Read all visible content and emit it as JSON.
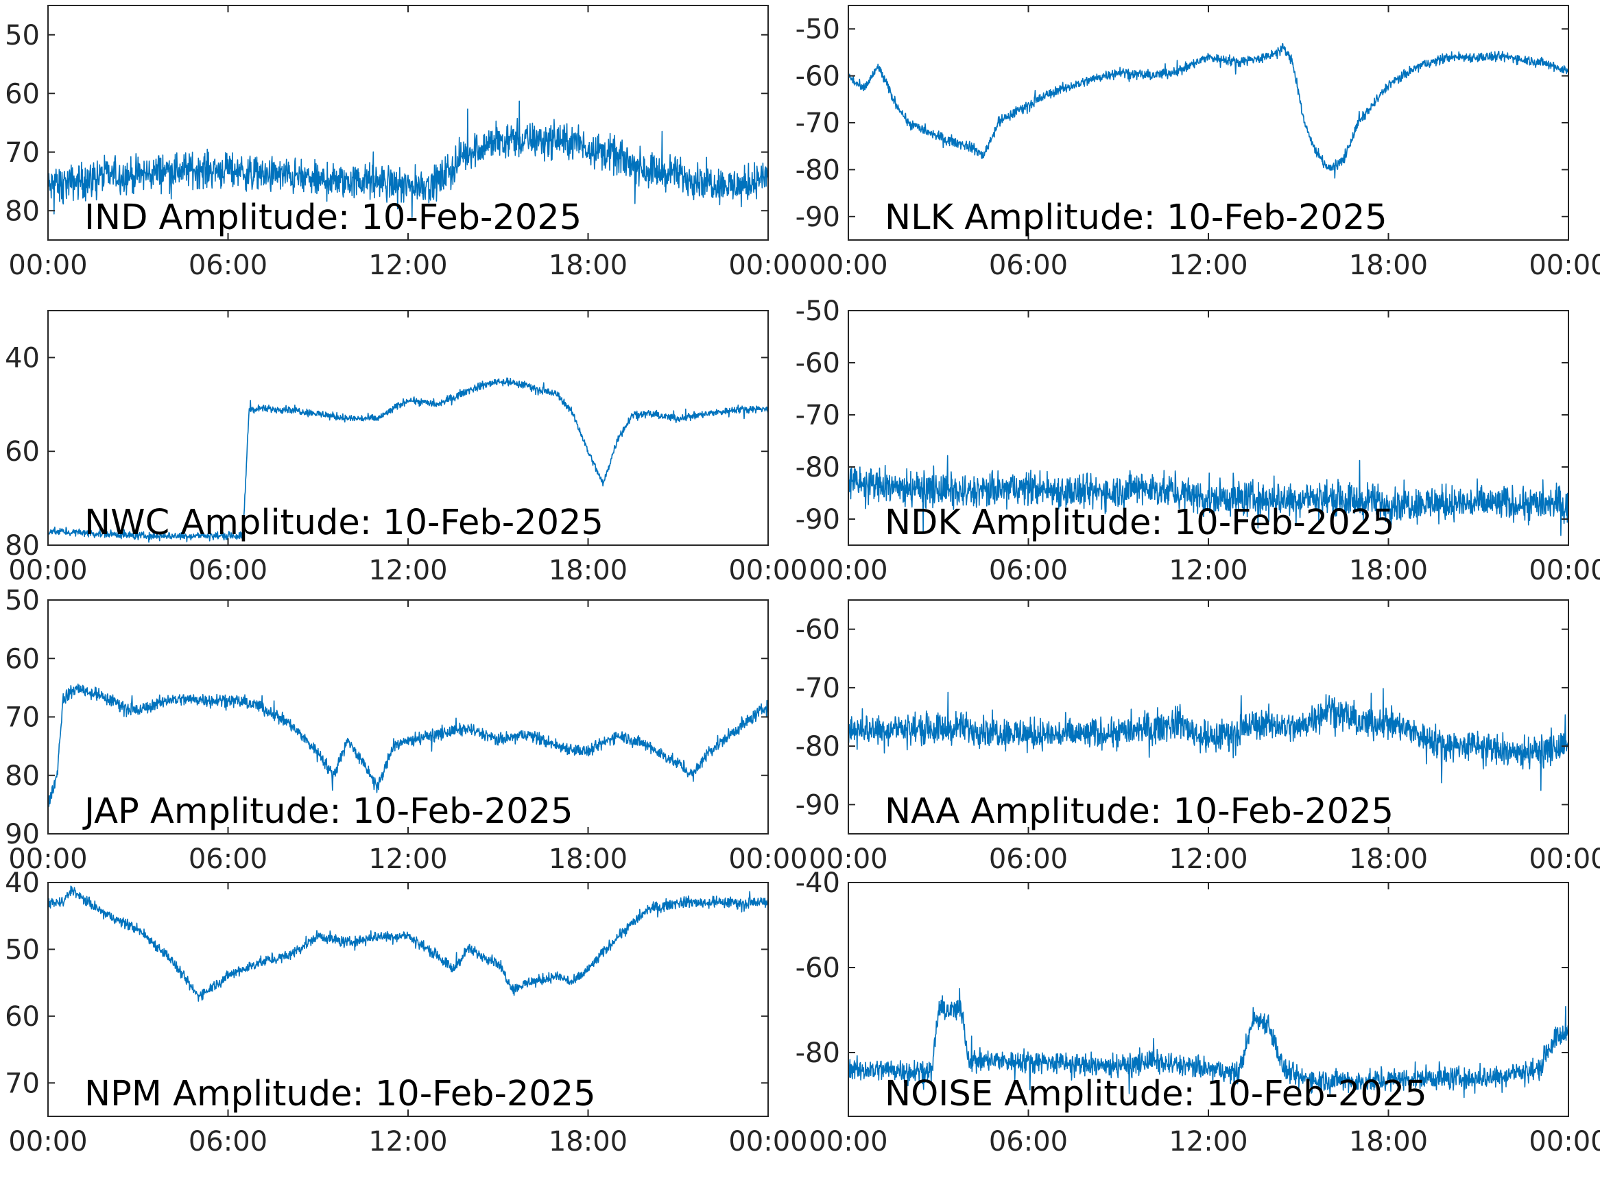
{
  "figure": {
    "line_color": "#0072BD",
    "axis_color": "#262626"
  },
  "chart_data": [
    {
      "type": "line",
      "title": "IND Amplitude: 10-Feb-2025",
      "station": "IND",
      "ylim": [
        -85,
        -45
      ],
      "yticks": [
        -50,
        -60,
        -70,
        -80
      ],
      "ytick_labels": [
        "50",
        "60",
        "70",
        "80"
      ],
      "xticks": [
        "00:00",
        "06:00",
        "12:00",
        "18:00",
        "00:00"
      ],
      "x": [
        0,
        1,
        2,
        3,
        4,
        5,
        6,
        7,
        8,
        9,
        10,
        11,
        12,
        13,
        14,
        15,
        16,
        17,
        18,
        19,
        20,
        21,
        22,
        23,
        24
      ],
      "y": [
        -76,
        -75,
        -74,
        -74,
        -73,
        -73,
        -73,
        -74,
        -74,
        -75,
        -75,
        -75,
        -76,
        -75,
        -70,
        -68,
        -68,
        -68,
        -69,
        -71,
        -73,
        -74,
        -75,
        -76,
        -74
      ],
      "noise": 4.5
    },
    {
      "type": "line",
      "title": "NLK Amplitude: 10-Feb-2025",
      "station": "NLK",
      "ylim": [
        -95,
        -45
      ],
      "yticks": [
        -50,
        -60,
        -70,
        -80,
        -90
      ],
      "ytick_labels": [
        "-50",
        "-60",
        "-70",
        "-80",
        "-90"
      ],
      "xticks": [
        "00:00",
        "06:00",
        "12:00",
        "18:00",
        "00:00"
      ],
      "x": [
        0,
        0.5,
        1,
        1.5,
        2,
        3,
        4,
        4.5,
        5,
        6,
        7,
        8,
        9,
        10,
        11,
        12,
        13,
        14,
        14.5,
        14.8,
        15.2,
        15.5,
        16,
        16.5,
        17,
        18,
        19,
        20,
        21,
        22,
        23,
        24
      ],
      "y": [
        -60,
        -63,
        -58,
        -65,
        -70,
        -73,
        -75,
        -77,
        -70,
        -66,
        -63,
        -61,
        -59,
        -60,
        -59,
        -56,
        -57,
        -56,
        -54,
        -57,
        -70,
        -75,
        -80,
        -78,
        -70,
        -62,
        -58,
        -56,
        -56,
        -56,
        -57,
        -59
      ],
      "noise": 1.6
    },
    {
      "type": "line",
      "title": "NWC Amplitude: 10-Feb-2025",
      "station": "NWC",
      "ylim": [
        -80,
        -30
      ],
      "yticks": [
        -40,
        -60,
        -80
      ],
      "ytick_labels": [
        "40",
        "60",
        "80"
      ],
      "xticks": [
        "00:00",
        "06:00",
        "12:00",
        "18:00",
        "00:00"
      ],
      "x": [
        0,
        3,
        6.5,
        6.7,
        7,
        8,
        9,
        10,
        11,
        12,
        13,
        14,
        15,
        16,
        17,
        17.5,
        18,
        18.5,
        19,
        19.5,
        20,
        21,
        22,
        23,
        24
      ],
      "y": [
        -77,
        -78,
        -78,
        -51,
        -51,
        -51,
        -52,
        -53,
        -53,
        -49,
        -50,
        -47,
        -45,
        -46,
        -48,
        -52,
        -60,
        -67,
        -57,
        -52,
        -52,
        -53,
        -52,
        -51,
        -51
      ],
      "noise": 1.2
    },
    {
      "type": "line",
      "title": "NDK Amplitude: 10-Feb-2025",
      "station": "NDK",
      "ylim": [
        -95,
        -50
      ],
      "yticks": [
        -50,
        -60,
        -70,
        -80,
        -90
      ],
      "ytick_labels": [
        "-50",
        "-60",
        "-70",
        "-80",
        "-90"
      ],
      "xticks": [
        "00:00",
        "06:00",
        "12:00",
        "18:00",
        "00:00"
      ],
      "x": [
        0,
        2,
        4,
        6,
        8,
        10,
        12,
        14,
        16,
        18,
        20,
        22,
        24
      ],
      "y": [
        -83,
        -84,
        -85,
        -84,
        -85,
        -84,
        -86,
        -86,
        -86,
        -87,
        -87,
        -87,
        -87
      ],
      "noise": 5
    },
    {
      "type": "line",
      "title": "JAP Amplitude: 10-Feb-2025",
      "station": "JAP",
      "ylim": [
        -90,
        -50
      ],
      "yticks": [
        -50,
        -60,
        -70,
        -80,
        -90
      ],
      "ytick_labels": [
        "50",
        "60",
        "70",
        "80",
        "90"
      ],
      "xticks": [
        "00:00",
        "06:00",
        "12:00",
        "18:00",
        "00:00"
      ],
      "x": [
        0,
        0.3,
        0.5,
        1,
        2,
        3,
        4,
        5,
        6,
        7,
        8,
        9,
        9.5,
        10,
        11,
        11.5,
        12,
        13,
        14,
        15,
        16,
        17,
        18,
        19,
        20,
        21,
        21.5,
        22,
        23,
        24
      ],
      "y": [
        -85,
        -80,
        -67,
        -65,
        -67,
        -69,
        -67,
        -67,
        -67,
        -68,
        -71,
        -76,
        -80,
        -74,
        -82,
        -75,
        -74,
        -73,
        -72,
        -74,
        -73,
        -75,
        -76,
        -73,
        -75,
        -78,
        -80,
        -76,
        -72,
        -68
      ],
      "noise": 1.6
    },
    {
      "type": "line",
      "title": "NAA Amplitude: 10-Feb-2025",
      "station": "NAA",
      "ylim": [
        -95,
        -55
      ],
      "yticks": [
        -60,
        -70,
        -80,
        -90
      ],
      "ytick_labels": [
        "-60",
        "-70",
        "-80",
        "-90"
      ],
      "xticks": [
        "00:00",
        "06:00",
        "12:00",
        "18:00",
        "00:00"
      ],
      "x": [
        0,
        2,
        4,
        6,
        8,
        10,
        11,
        12,
        13,
        14,
        15,
        16,
        17,
        18,
        19,
        20,
        21,
        22,
        23,
        24
      ],
      "y": [
        -77,
        -77,
        -77,
        -78,
        -78,
        -77,
        -76,
        -79,
        -77,
        -76,
        -77,
        -73,
        -76,
        -76,
        -78,
        -80,
        -80,
        -81,
        -81,
        -80
      ],
      "noise": 4
    },
    {
      "type": "line",
      "title": "NPM Amplitude: 10-Feb-2025",
      "station": "NPM",
      "ylim": [
        -75,
        -40
      ],
      "yticks": [
        -40,
        -50,
        -60,
        -70
      ],
      "ytick_labels": [
        "40",
        "50",
        "60",
        "70"
      ],
      "xticks": [
        "00:00",
        "06:00",
        "12:00",
        "18:00",
        "00:00"
      ],
      "x": [
        0,
        0.5,
        0.8,
        1,
        2,
        3,
        4,
        5,
        6,
        7,
        8,
        9,
        10,
        11,
        12,
        13,
        13.5,
        14,
        15,
        15.5,
        16,
        17,
        17.5,
        18,
        19,
        20,
        21,
        22,
        23,
        24
      ],
      "y": [
        -43,
        -43,
        -41,
        -42,
        -45,
        -47,
        -51,
        -57,
        -54,
        -52,
        -51,
        -48,
        -49,
        -48,
        -48,
        -51,
        -53,
        -50,
        -52,
        -56,
        -55,
        -54,
        -55,
        -53,
        -48,
        -44,
        -43,
        -43,
        -43,
        -43
      ],
      "noise": 1.2
    },
    {
      "type": "line",
      "title": "NOISE Amplitude: 10-Feb-2025",
      "station": "NOISE",
      "ylim": [
        -95,
        -40
      ],
      "yticks": [
        -40,
        -60,
        -80
      ],
      "ytick_labels": [
        "-40",
        "-60",
        "-80"
      ],
      "xticks": [
        "00:00",
        "06:00",
        "12:00",
        "18:00",
        "00:00"
      ],
      "x": [
        0,
        2,
        2.8,
        3,
        3.8,
        4,
        6,
        8,
        9.5,
        10,
        12,
        13,
        13.5,
        14,
        14.5,
        15,
        17,
        19,
        21,
        23,
        23.5,
        24
      ],
      "y": [
        -84,
        -84,
        -84,
        -70,
        -70,
        -82,
        -82,
        -83,
        -83,
        -82,
        -84,
        -85,
        -72,
        -73,
        -84,
        -86,
        -87,
        -86,
        -86,
        -84,
        -77,
        -75
      ],
      "noise": 4
    }
  ]
}
